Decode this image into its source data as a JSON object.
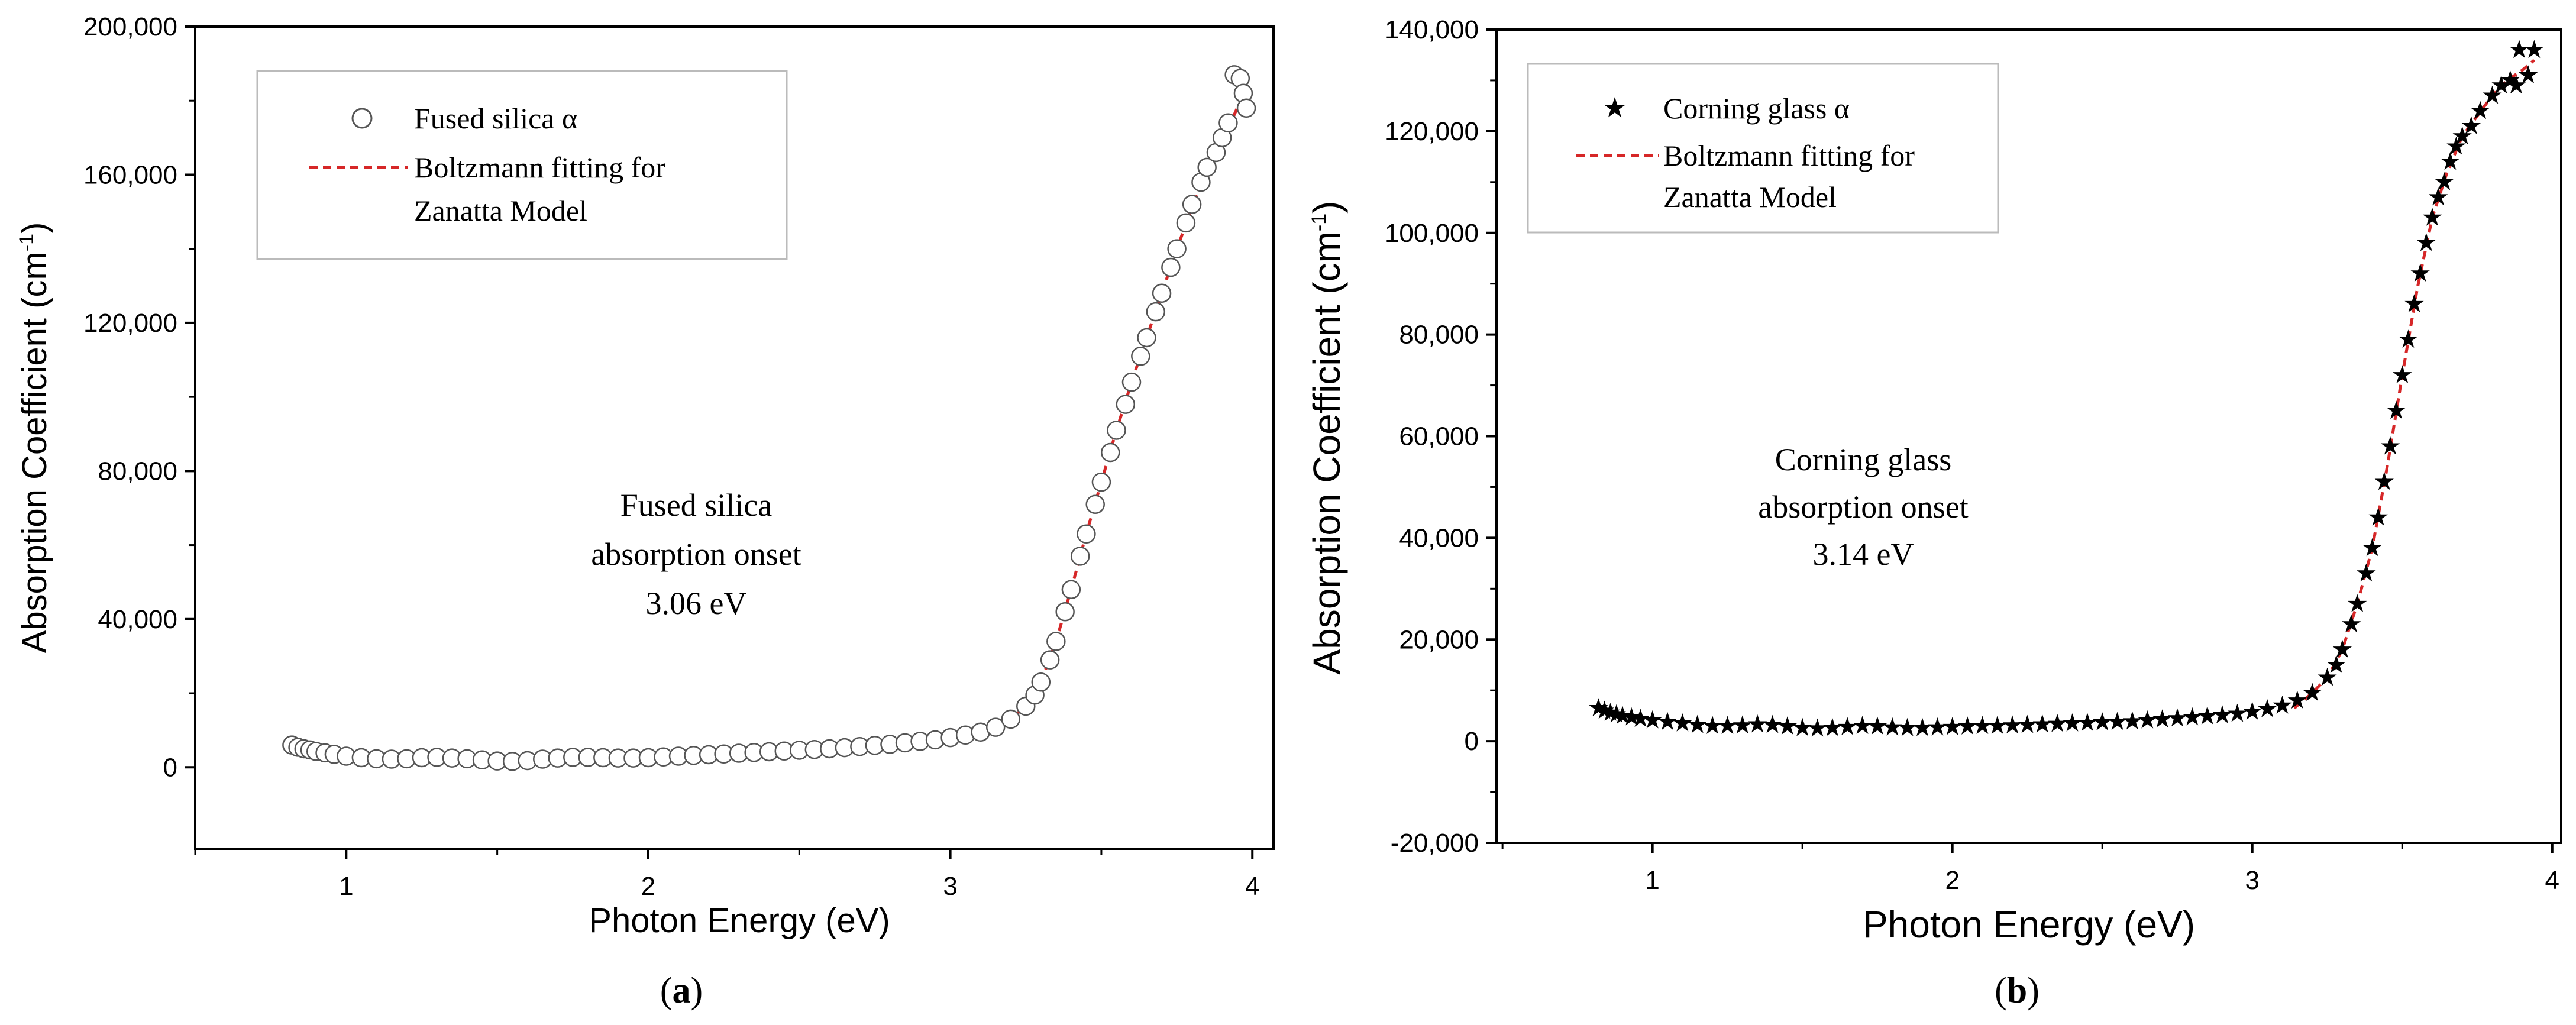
{
  "colors": {
    "axis": "#000000",
    "fit": "#d62728",
    "marker_a": "#ffffff",
    "marker_b": "#000000"
  },
  "chart_data": [
    {
      "type": "scatter",
      "caption_open": "(",
      "caption_letter": "a",
      "caption_close": ")",
      "xlabel": "Photon Energy (eV)",
      "ylabel_main": "Absorption Coefficient (cm",
      "ylabel_sup": "-1",
      "ylabel_close": ")",
      "xlim": [
        0.5,
        4.07
      ],
      "ylim": [
        -22000,
        200000
      ],
      "xticks": [
        1,
        2,
        3,
        4
      ],
      "xtick_labels": [
        "1",
        "2",
        "3",
        "4"
      ],
      "yticks": [
        0,
        40000,
        80000,
        120000,
        160000,
        200000
      ],
      "ytick_labels": [
        "0",
        "40,000",
        "80,000",
        "120,000",
        "160,000",
        "200,000"
      ],
      "legend": [
        "Fused silica α",
        "Boltzmann fitting for",
        "Zanatta Model"
      ],
      "annotation": [
        "Fused silica",
        "absorption onset",
        "3.06 eV"
      ],
      "marker": "open-circle",
      "series": [
        {
          "name": "Fused silica α",
          "points": [
            [
              0.82,
              6000
            ],
            [
              0.84,
              5400
            ],
            [
              0.86,
              5000
            ],
            [
              0.88,
              4700
            ],
            [
              0.9,
              4300
            ],
            [
              0.93,
              3900
            ],
            [
              0.96,
              3500
            ],
            [
              1.0,
              3000
            ],
            [
              1.05,
              2600
            ],
            [
              1.1,
              2300
            ],
            [
              1.15,
              2200
            ],
            [
              1.2,
              2300
            ],
            [
              1.25,
              2600
            ],
            [
              1.3,
              2700
            ],
            [
              1.35,
              2500
            ],
            [
              1.4,
              2300
            ],
            [
              1.45,
              2000
            ],
            [
              1.5,
              1700
            ],
            [
              1.55,
              1600
            ],
            [
              1.6,
              1800
            ],
            [
              1.65,
              2200
            ],
            [
              1.7,
              2500
            ],
            [
              1.75,
              2700
            ],
            [
              1.8,
              2700
            ],
            [
              1.85,
              2600
            ],
            [
              1.9,
              2500
            ],
            [
              1.95,
              2500
            ],
            [
              2.0,
              2600
            ],
            [
              2.05,
              2800
            ],
            [
              2.1,
              3000
            ],
            [
              2.15,
              3200
            ],
            [
              2.2,
              3400
            ],
            [
              2.25,
              3600
            ],
            [
              2.3,
              3800
            ],
            [
              2.35,
              4000
            ],
            [
              2.4,
              4200
            ],
            [
              2.45,
              4400
            ],
            [
              2.5,
              4600
            ],
            [
              2.55,
              4800
            ],
            [
              2.6,
              5000
            ],
            [
              2.65,
              5300
            ],
            [
              2.7,
              5600
            ],
            [
              2.75,
              5900
            ],
            [
              2.8,
              6200
            ],
            [
              2.85,
              6600
            ],
            [
              2.9,
              7000
            ],
            [
              2.95,
              7400
            ],
            [
              3.0,
              8000
            ],
            [
              3.05,
              8700
            ],
            [
              3.1,
              9500
            ],
            [
              3.15,
              10800
            ],
            [
              3.2,
              13000
            ],
            [
              3.25,
              16500
            ],
            [
              3.28,
              19500
            ],
            [
              3.3,
              23000
            ],
            [
              3.33,
              29000
            ],
            [
              3.35,
              34000
            ],
            [
              3.38,
              42000
            ],
            [
              3.4,
              48000
            ],
            [
              3.43,
              57000
            ],
            [
              3.45,
              63000
            ],
            [
              3.48,
              71000
            ],
            [
              3.5,
              77000
            ],
            [
              3.53,
              85000
            ],
            [
              3.55,
              91000
            ],
            [
              3.58,
              98000
            ],
            [
              3.6,
              104000
            ],
            [
              3.63,
              111000
            ],
            [
              3.65,
              116000
            ],
            [
              3.68,
              123000
            ],
            [
              3.7,
              128000
            ],
            [
              3.73,
              135000
            ],
            [
              3.75,
              140000
            ],
            [
              3.78,
              147000
            ],
            [
              3.8,
              152000
            ],
            [
              3.83,
              158000
            ],
            [
              3.85,
              162000
            ],
            [
              3.88,
              166000
            ],
            [
              3.9,
              170000
            ],
            [
              3.92,
              174000
            ],
            [
              3.94,
              187000
            ],
            [
              3.96,
              186000
            ],
            [
              3.97,
              182000
            ],
            [
              3.98,
              178000
            ]
          ]
        },
        {
          "name": "Boltzmann fitting for Zanatta Model",
          "style": "dashed-line",
          "points": [
            [
              3.06,
              7500
            ],
            [
              3.1,
              9000
            ],
            [
              3.15,
              10500
            ],
            [
              3.2,
              13000
            ],
            [
              3.25,
              16500
            ],
            [
              3.3,
              23000
            ],
            [
              3.35,
              34000
            ],
            [
              3.4,
              48000
            ],
            [
              3.45,
              63000
            ],
            [
              3.5,
              77000
            ],
            [
              3.55,
              91000
            ],
            [
              3.6,
              104000
            ],
            [
              3.65,
              116000
            ],
            [
              3.7,
              128000
            ],
            [
              3.75,
              140000
            ],
            [
              3.8,
              151000
            ],
            [
              3.85,
              161000
            ],
            [
              3.9,
              169000
            ],
            [
              3.95,
              178000
            ]
          ]
        }
      ]
    },
    {
      "type": "scatter",
      "caption_open": "(",
      "caption_letter": "b",
      "caption_close": ")",
      "xlabel": "Photon Energy (eV)",
      "ylabel_main": "Absorption Coefficient (cm",
      "ylabel_sup": "-1",
      "ylabel_close": ")",
      "xlim": [
        0.48,
        4.03
      ],
      "ylim": [
        -20000,
        140000
      ],
      "xticks": [
        1,
        2,
        3,
        4
      ],
      "xtick_labels": [
        "1",
        "2",
        "3",
        "4"
      ],
      "yticks": [
        -20000,
        0,
        20000,
        40000,
        60000,
        80000,
        100000,
        120000,
        140000
      ],
      "ytick_labels": [
        "-20,000",
        "0",
        "20,000",
        "40,000",
        "60,000",
        "80,000",
        "100,000",
        "120,000",
        "140,000"
      ],
      "legend": [
        "Corning glass α",
        "Boltzmann fitting for",
        "Zanatta Model"
      ],
      "annotation": [
        "Corning glass",
        "absorption onset",
        "3.14 eV"
      ],
      "marker": "filled-star",
      "series": [
        {
          "name": "Corning glass α",
          "points": [
            [
              0.82,
              6500
            ],
            [
              0.84,
              6000
            ],
            [
              0.86,
              5600
            ],
            [
              0.88,
              5300
            ],
            [
              0.9,
              5000
            ],
            [
              0.93,
              4700
            ],
            [
              0.96,
              4400
            ],
            [
              1.0,
              4100
            ],
            [
              1.05,
              3800
            ],
            [
              1.1,
              3500
            ],
            [
              1.15,
              3200
            ],
            [
              1.2,
              3000
            ],
            [
              1.25,
              3000
            ],
            [
              1.3,
              3100
            ],
            [
              1.35,
              3300
            ],
            [
              1.4,
              3200
            ],
            [
              1.45,
              2900
            ],
            [
              1.5,
              2600
            ],
            [
              1.55,
              2500
            ],
            [
              1.6,
              2600
            ],
            [
              1.65,
              2800
            ],
            [
              1.7,
              3000
            ],
            [
              1.75,
              2900
            ],
            [
              1.8,
              2700
            ],
            [
              1.85,
              2600
            ],
            [
              1.9,
              2600
            ],
            [
              1.95,
              2700
            ],
            [
              2.0,
              2800
            ],
            [
              2.05,
              2900
            ],
            [
              2.1,
              3000
            ],
            [
              2.15,
              3000
            ],
            [
              2.2,
              3100
            ],
            [
              2.25,
              3200
            ],
            [
              2.3,
              3300
            ],
            [
              2.35,
              3400
            ],
            [
              2.4,
              3500
            ],
            [
              2.45,
              3600
            ],
            [
              2.5,
              3700
            ],
            [
              2.55,
              3800
            ],
            [
              2.6,
              3900
            ],
            [
              2.65,
              4100
            ],
            [
              2.7,
              4300
            ],
            [
              2.75,
              4500
            ],
            [
              2.8,
              4700
            ],
            [
              2.85,
              4900
            ],
            [
              2.9,
              5100
            ],
            [
              2.95,
              5400
            ],
            [
              3.0,
              5800
            ],
            [
              3.05,
              6300
            ],
            [
              3.1,
              7000
            ],
            [
              3.15,
              8000
            ],
            [
              3.2,
              9500
            ],
            [
              3.25,
              12500
            ],
            [
              3.28,
              15000
            ],
            [
              3.3,
              18000
            ],
            [
              3.33,
              23000
            ],
            [
              3.35,
              27000
            ],
            [
              3.38,
              33000
            ],
            [
              3.4,
              38000
            ],
            [
              3.42,
              44000
            ],
            [
              3.44,
              51000
            ],
            [
              3.46,
              58000
            ],
            [
              3.48,
              65000
            ],
            [
              3.5,
              72000
            ],
            [
              3.52,
              79000
            ],
            [
              3.54,
              86000
            ],
            [
              3.56,
              92000
            ],
            [
              3.58,
              98000
            ],
            [
              3.6,
              103000
            ],
            [
              3.62,
              107000
            ],
            [
              3.64,
              110000
            ],
            [
              3.66,
              114000
            ],
            [
              3.68,
              117000
            ],
            [
              3.7,
              119000
            ],
            [
              3.73,
              121000
            ],
            [
              3.76,
              124000
            ],
            [
              3.8,
              127000
            ],
            [
              3.83,
              129000
            ],
            [
              3.86,
              130000
            ],
            [
              3.88,
              129000
            ],
            [
              3.89,
              136000
            ],
            [
              3.92,
              131000
            ],
            [
              3.94,
              136000
            ]
          ]
        },
        {
          "name": "Boltzmann fitting for Zanatta Model",
          "style": "dashed-line",
          "points": [
            [
              3.14,
              6500
            ],
            [
              3.2,
              9500
            ],
            [
              3.25,
              12500
            ],
            [
              3.3,
              18000
            ],
            [
              3.35,
              27000
            ],
            [
              3.4,
              38000
            ],
            [
              3.45,
              54000
            ],
            [
              3.5,
              72000
            ],
            [
              3.55,
              89000
            ],
            [
              3.6,
              103000
            ],
            [
              3.65,
              112000
            ],
            [
              3.7,
              119000
            ],
            [
              3.75,
              123000
            ],
            [
              3.8,
              127000
            ],
            [
              3.85,
              130000
            ],
            [
              3.9,
              132000
            ],
            [
              3.94,
              134000
            ]
          ]
        }
      ]
    }
  ]
}
